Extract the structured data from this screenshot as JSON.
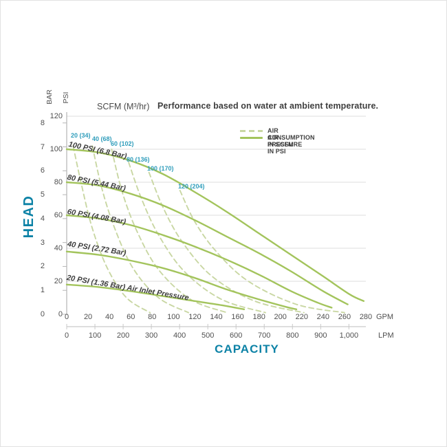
{
  "header": {
    "scfm_units": "SCFM (M³/hr)"
  },
  "chart_data": {
    "type": "line",
    "title": "Performance based on water at ambient temperature.",
    "x_axis": {
      "title": "CAPACITY",
      "unit_primary": "GPM",
      "unit_secondary": "LPM",
      "gpm_ticks": [
        0,
        20,
        40,
        60,
        80,
        100,
        120,
        140,
        160,
        180,
        200,
        220,
        240,
        260,
        280
      ],
      "lpm_ticks": [
        "0",
        "100",
        "200",
        "300",
        "400",
        "500",
        "600",
        "700",
        "800",
        "900",
        "1,000"
      ],
      "gpm_range": [
        0,
        280
      ]
    },
    "y_axis": {
      "title": "HEAD",
      "unit_primary": "PSI",
      "unit_secondary": "BAR",
      "psi_ticks": [
        120,
        100,
        80,
        60,
        40,
        20,
        0
      ],
      "bar_ticks": [
        8,
        7,
        6,
        5,
        4,
        3,
        2,
        1,
        0
      ],
      "psi_range": [
        0,
        120
      ],
      "gridlines_psi": [
        120,
        100,
        80,
        60,
        40,
        20
      ]
    },
    "legend": [
      {
        "swatch": "dashed",
        "label": "AIR CONSUMPTION IN SCFM"
      },
      {
        "swatch": "solid",
        "label": "AIR PRESSURE IN PSI"
      }
    ],
    "pressure_curves": [
      {
        "label": "100 PSI (6.8 Bar)",
        "points_gpm_psi": [
          [
            0,
            100
          ],
          [
            30,
            98
          ],
          [
            60,
            93
          ],
          [
            90,
            85
          ],
          [
            120,
            74
          ],
          [
            150,
            62
          ],
          [
            180,
            49
          ],
          [
            210,
            36
          ],
          [
            240,
            23
          ],
          [
            265,
            12
          ],
          [
            278,
            8
          ]
        ]
      },
      {
        "label": "80 PSI (5.44 Bar)",
        "points_gpm_psi": [
          [
            0,
            80
          ],
          [
            30,
            78
          ],
          [
            60,
            73
          ],
          [
            90,
            66
          ],
          [
            120,
            57
          ],
          [
            150,
            47
          ],
          [
            180,
            37
          ],
          [
            210,
            26
          ],
          [
            240,
            14
          ],
          [
            263,
            6
          ]
        ]
      },
      {
        "label": "60 PSI (4.08 Bar)",
        "points_gpm_psi": [
          [
            0,
            60
          ],
          [
            30,
            58
          ],
          [
            60,
            54
          ],
          [
            90,
            48
          ],
          [
            120,
            41
          ],
          [
            150,
            33
          ],
          [
            180,
            24
          ],
          [
            210,
            14
          ],
          [
            235,
            7
          ],
          [
            248,
            4
          ]
        ]
      },
      {
        "label": "40 PSI (2.72 Bar)",
        "points_gpm_psi": [
          [
            0,
            38
          ],
          [
            30,
            36
          ],
          [
            60,
            32.5
          ],
          [
            90,
            28
          ],
          [
            120,
            22
          ],
          [
            150,
            15
          ],
          [
            180,
            9
          ],
          [
            205,
            4.5
          ],
          [
            215,
            3
          ]
        ]
      },
      {
        "label": "20 PSI (1.36 Bar) Air Inlet Pressure",
        "points_gpm_psi": [
          [
            0,
            18
          ],
          [
            30,
            16.5
          ],
          [
            60,
            14
          ],
          [
            90,
            11
          ],
          [
            120,
            8
          ],
          [
            145,
            5.5
          ],
          [
            166,
            3
          ]
        ]
      }
    ],
    "consumption_curves": [
      {
        "label": "20 (34)",
        "points_gpm_psi": [
          [
            6,
            102
          ],
          [
            14,
            78
          ],
          [
            24,
            52
          ],
          [
            38,
            28
          ],
          [
            56,
            10
          ],
          [
            78,
            1
          ]
        ]
      },
      {
        "label": "40 (68)",
        "points_gpm_psi": [
          [
            24,
            102
          ],
          [
            33,
            76
          ],
          [
            45,
            52
          ],
          [
            62,
            28
          ],
          [
            86,
            10
          ],
          [
            114,
            1
          ]
        ]
      },
      {
        "label": "60 (102)",
        "points_gpm_psi": [
          [
            42,
            100
          ],
          [
            52,
            74
          ],
          [
            66,
            50
          ],
          [
            86,
            27
          ],
          [
            116,
            9
          ],
          [
            150,
            1
          ]
        ]
      },
      {
        "label": "80 (136)",
        "points_gpm_psi": [
          [
            58,
            92
          ],
          [
            70,
            70
          ],
          [
            86,
            48
          ],
          [
            110,
            26
          ],
          [
            145,
            9
          ],
          [
            186,
            1
          ]
        ]
      },
      {
        "label": "100 (170)",
        "points_gpm_psi": [
          [
            77,
            86
          ],
          [
            90,
            65
          ],
          [
            108,
            44
          ],
          [
            136,
            23
          ],
          [
            176,
            8
          ],
          [
            222,
            1
          ]
        ]
      },
      {
        "label": "120 (204)",
        "points_gpm_psi": [
          [
            106,
            75
          ],
          [
            120,
            56
          ],
          [
            140,
            38
          ],
          [
            170,
            20
          ],
          [
            215,
            6
          ],
          [
            260,
            1
          ]
        ]
      }
    ],
    "colors": {
      "pressure_curve": "#a3c45c",
      "consumption_curve": "#c9d7a3",
      "teal_title": "#0c82a6",
      "teal_label": "#2f9dbb",
      "gridline": "#dedede",
      "axis_line": "#b5b5b5",
      "text_dark": "#3e3e3e"
    }
  }
}
